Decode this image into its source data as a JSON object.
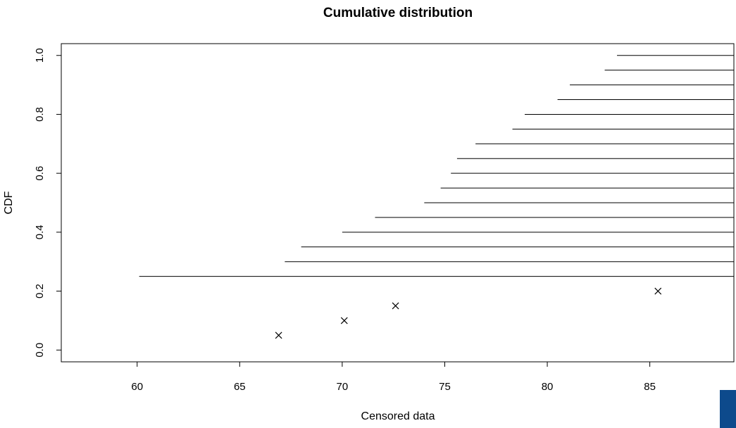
{
  "chart_data": {
    "type": "scatter",
    "title": "Cumulative distribution",
    "xlabel": "Censored data",
    "ylabel": "CDF",
    "xlim": [
      56.3,
      89.1
    ],
    "ylim": [
      -0.04,
      1.04
    ],
    "x_ticks": [
      60,
      65,
      70,
      75,
      80,
      85
    ],
    "y_ticks": [
      0.0,
      0.2,
      0.4,
      0.6,
      0.8,
      1.0
    ],
    "x_tick_labels": [
      "60",
      "65",
      "70",
      "75",
      "80",
      "85"
    ],
    "y_tick_labels": [
      "0.0",
      "0.2",
      "0.4",
      "0.6",
      "0.8",
      "1.0"
    ],
    "grid": false,
    "legend": "none",
    "points": [
      {
        "x": 66.9,
        "y": 0.05
      },
      {
        "x": 70.1,
        "y": 0.1
      },
      {
        "x": 72.6,
        "y": 0.15
      },
      {
        "x": 85.4,
        "y": 0.2
      }
    ],
    "censored_segments": [
      {
        "x_start": 60.1,
        "y": 0.25
      },
      {
        "x_start": 67.2,
        "y": 0.3
      },
      {
        "x_start": 68.0,
        "y": 0.35
      },
      {
        "x_start": 70.0,
        "y": 0.4
      },
      {
        "x_start": 71.6,
        "y": 0.45
      },
      {
        "x_start": 74.0,
        "y": 0.5
      },
      {
        "x_start": 74.8,
        "y": 0.55
      },
      {
        "x_start": 75.3,
        "y": 0.6
      },
      {
        "x_start": 75.6,
        "y": 0.65
      },
      {
        "x_start": 76.5,
        "y": 0.7
      },
      {
        "x_start": 78.3,
        "y": 0.75
      },
      {
        "x_start": 78.9,
        "y": 0.8
      },
      {
        "x_start": 80.5,
        "y": 0.85
      },
      {
        "x_start": 81.1,
        "y": 0.9
      },
      {
        "x_start": 82.8,
        "y": 0.95
      },
      {
        "x_start": 83.4,
        "y": 1.0
      }
    ]
  }
}
